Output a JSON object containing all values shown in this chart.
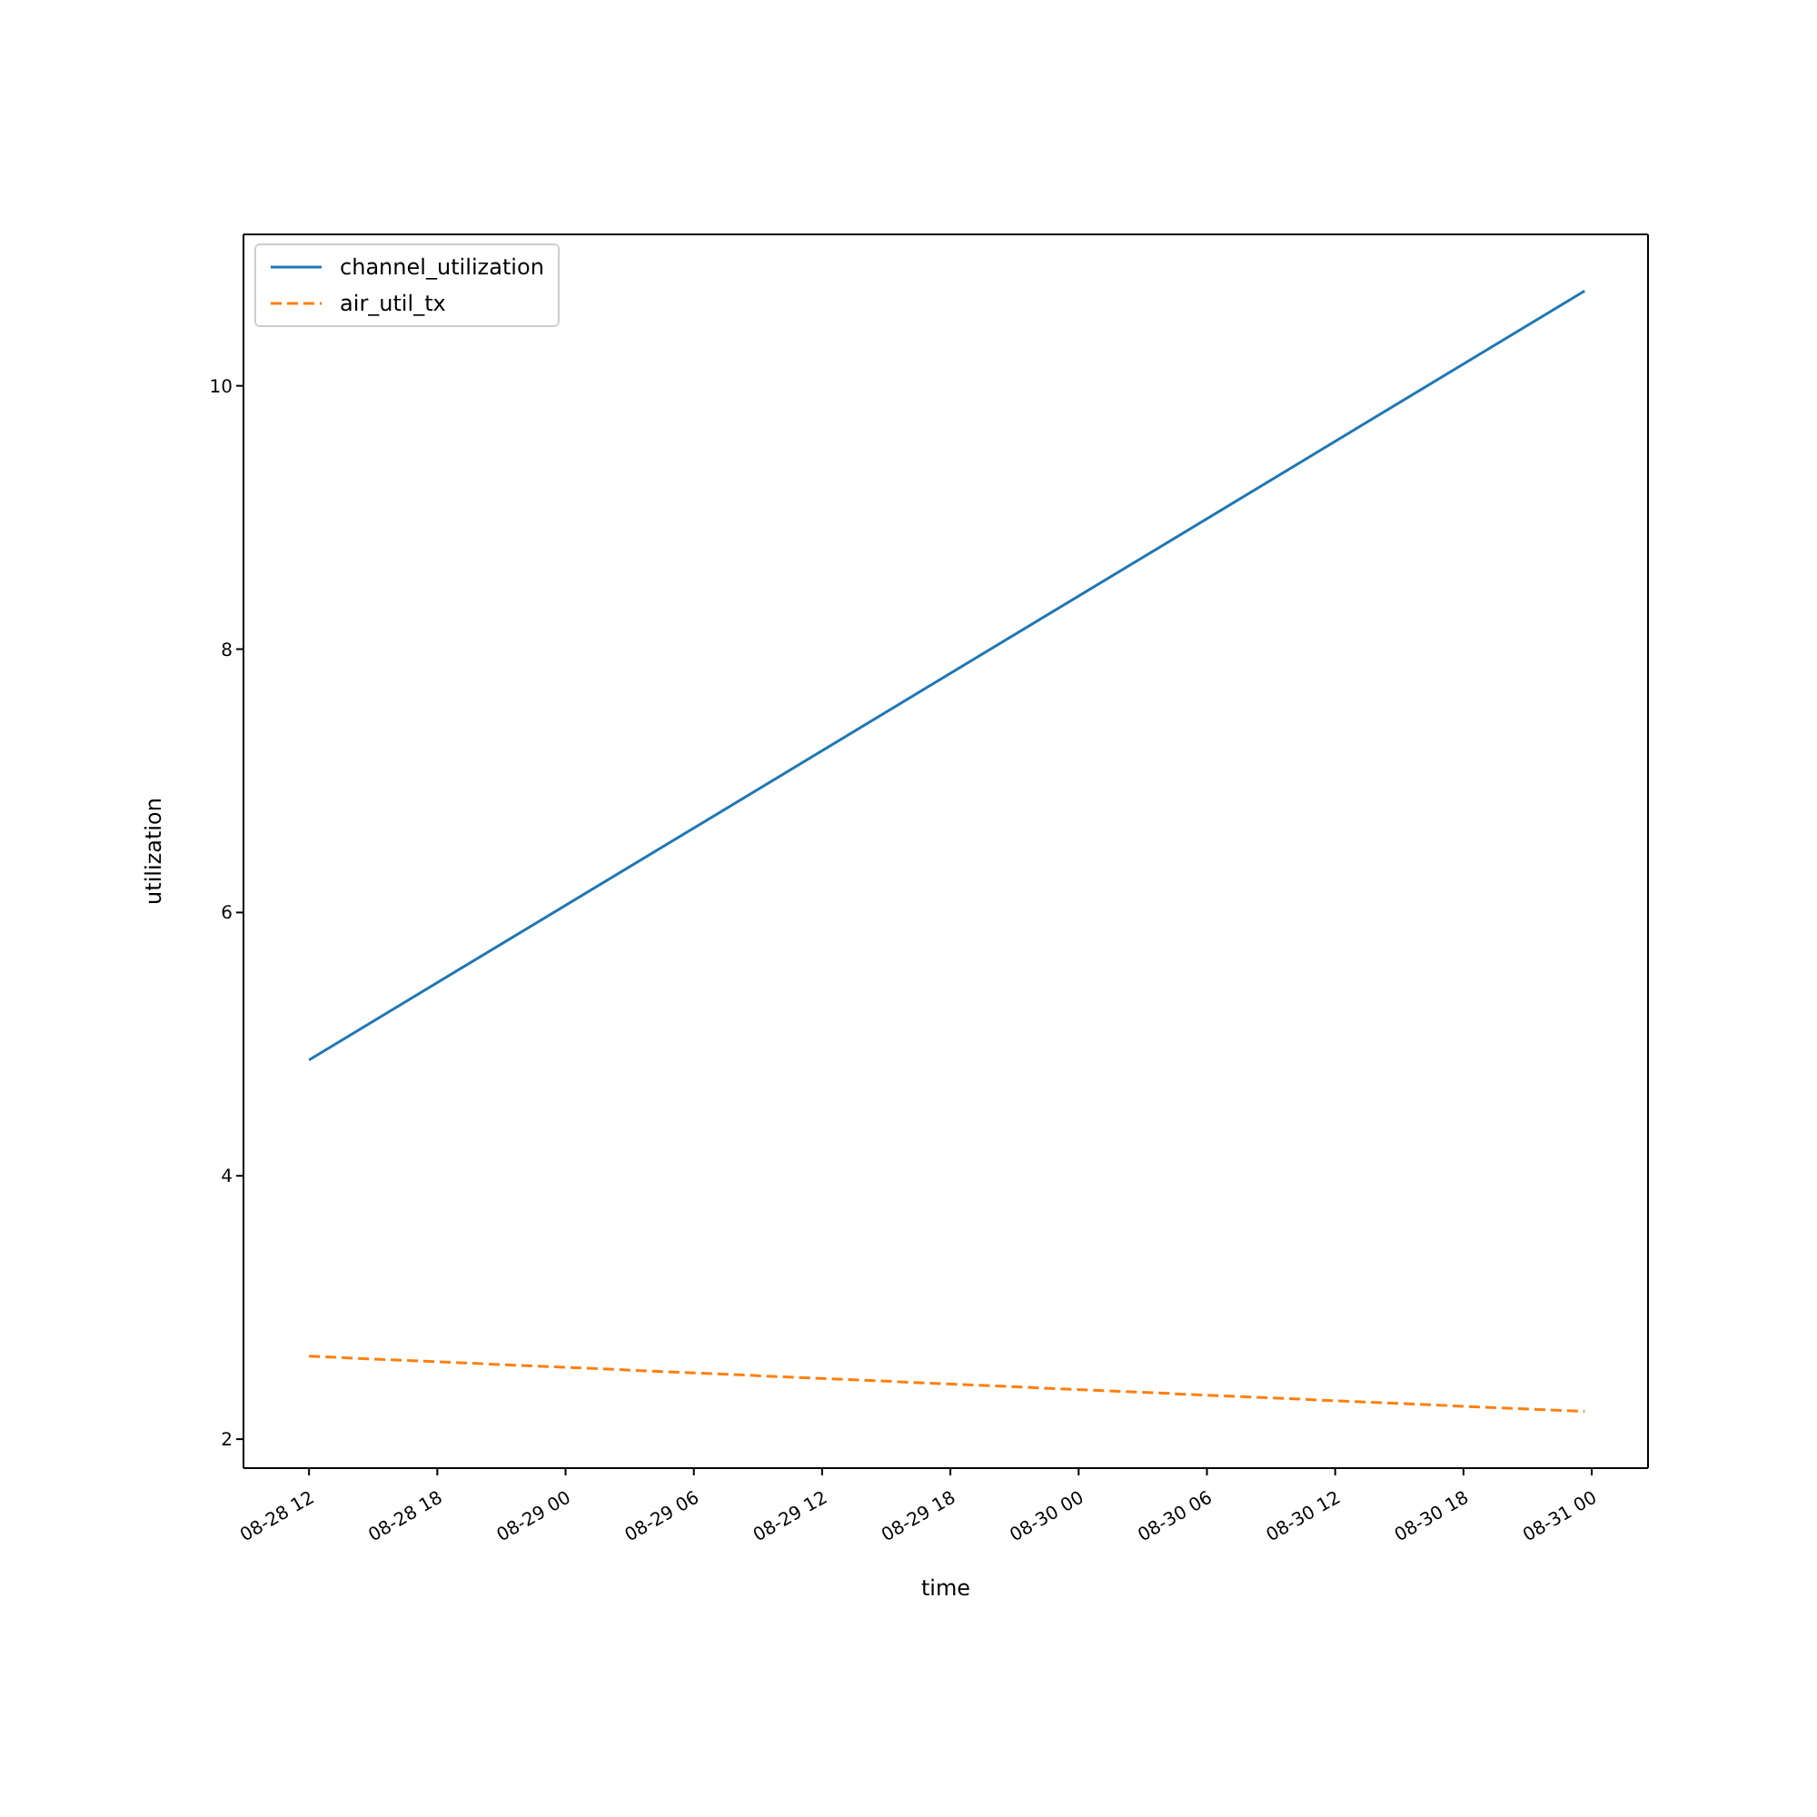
{
  "chart_data": {
    "type": "line",
    "xlabel": "time",
    "ylabel": "utilization",
    "x": [
      "--08-28T12:00",
      "--08-30T23:40"
    ],
    "series": [
      {
        "name": "channel_utilization",
        "color": "#1f77b4",
        "values": [
          4.88,
          10.72
        ],
        "line_style": "solid"
      },
      {
        "name": "air_util_tx",
        "color": "#ff7f0e",
        "values": [
          2.63,
          2.21
        ],
        "line_style": "dashed"
      }
    ],
    "xlim": [
      "--08-28T08:56",
      "--08-31T02:38"
    ],
    "xticks": [
      {
        "value": "--08-28T12:00",
        "label": "08-28 12"
      },
      {
        "value": "--08-28T18:00",
        "label": "08-28 18"
      },
      {
        "value": "--08-29T00:00",
        "label": "08-29 00"
      },
      {
        "value": "--08-29T06:00",
        "label": "08-29 06"
      },
      {
        "value": "--08-29T12:00",
        "label": "08-29 12"
      },
      {
        "value": "--08-29T18:00",
        "label": "08-29 18"
      },
      {
        "value": "--08-30T00:00",
        "label": "08-30 00"
      },
      {
        "value": "--08-30T06:00",
        "label": "08-30 06"
      },
      {
        "value": "--08-30T12:00",
        "label": "08-30 12"
      },
      {
        "value": "--08-30T18:00",
        "label": "08-30 18"
      },
      {
        "value": "--08-31T00:00",
        "label": "08-31 00"
      }
    ],
    "ylim": [
      1.78,
      11.15
    ],
    "yticks": [
      2,
      4,
      6,
      8,
      10
    ],
    "legend": "top left",
    "grid": false,
    "marker": "none"
  }
}
